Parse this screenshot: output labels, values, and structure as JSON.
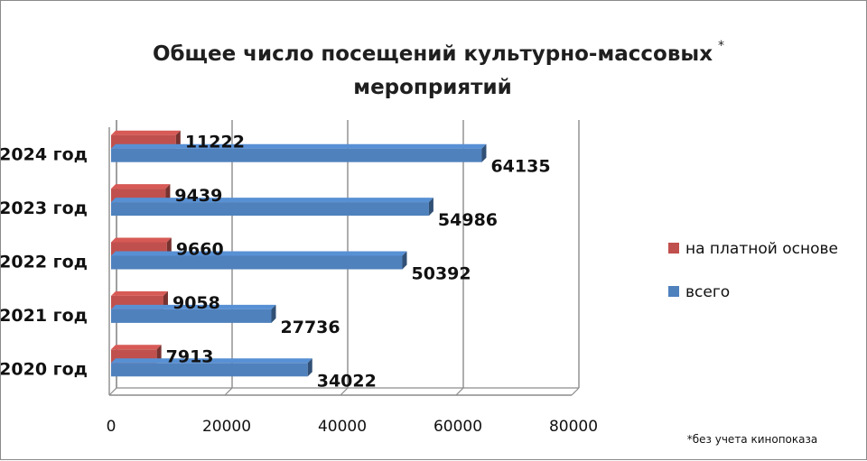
{
  "chart_data": {
    "type": "bar",
    "orientation": "horizontal",
    "title_line1": "Общее число посещений культурно-массовых",
    "title_star": "*",
    "title_line2": "мероприятий",
    "categories": [
      "2024 год",
      "2023 год",
      "2022 год",
      "2021 год",
      "2020 год"
    ],
    "series": [
      {
        "name": "на платной основе",
        "color": "#c0504d",
        "values": [
          11222,
          9439,
          9660,
          9058,
          7913
        ]
      },
      {
        "name": "всего",
        "color": "#4f81bd",
        "values": [
          64135,
          54986,
          50392,
          27736,
          34022
        ]
      }
    ],
    "xlim": [
      0,
      80000
    ],
    "ticks": [
      "0",
      "20000",
      "40000",
      "60000",
      "80000"
    ],
    "grid": true,
    "legend_position": "right",
    "footnote": "*без учета кинопоказа"
  }
}
